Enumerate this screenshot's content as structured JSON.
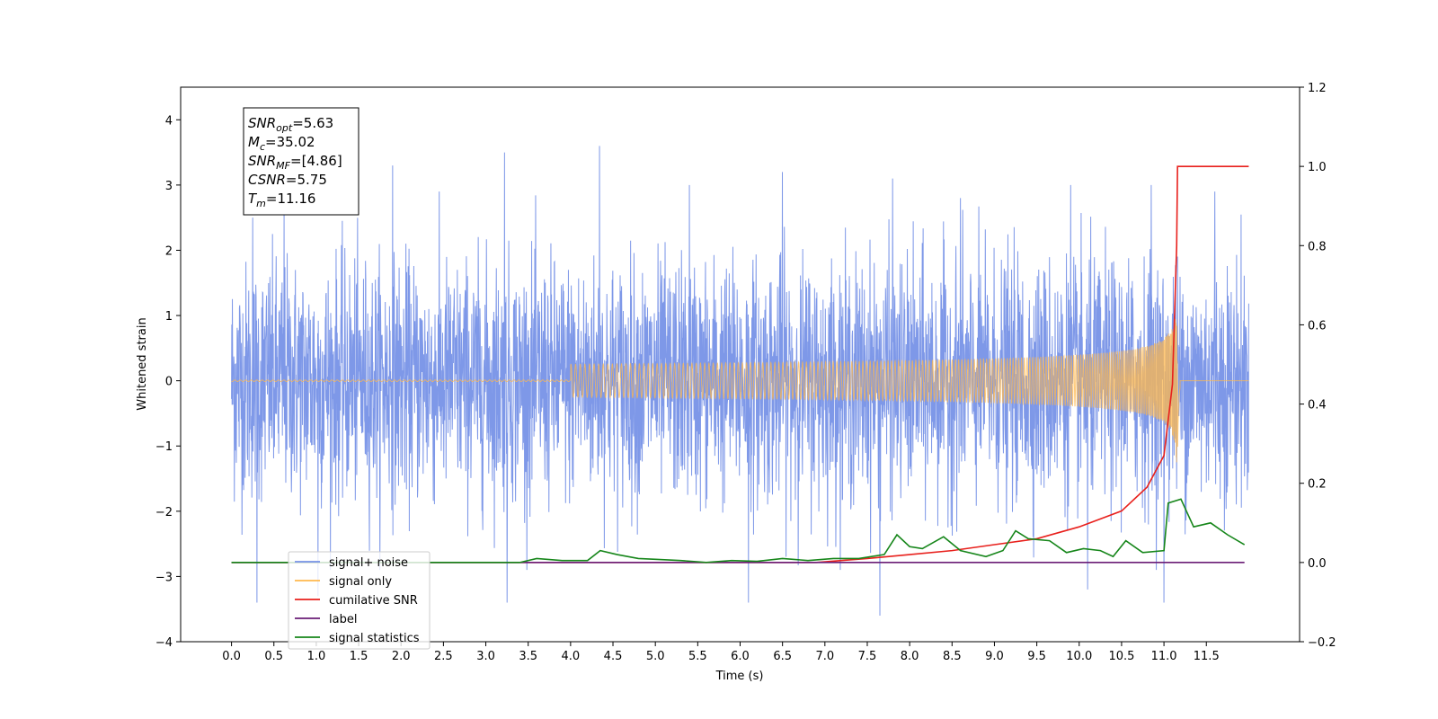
{
  "chart_data": {
    "type": "line",
    "title": "",
    "xlabel": "Time (s)",
    "ylabel": "Whitened strain",
    "y2label": "",
    "xlim": [
      -0.6,
      12.6
    ],
    "ylim": [
      -4,
      4.5
    ],
    "y2lim": [
      -0.2,
      1.2
    ],
    "x_ticks": [
      "0.0",
      "0.5",
      "1.0",
      "1.5",
      "2.0",
      "2.5",
      "3.0",
      "3.5",
      "4.0",
      "4.5",
      "5.0",
      "5.5",
      "6.0",
      "6.5",
      "7.0",
      "7.5",
      "8.0",
      "8.5",
      "9.0",
      "9.5",
      "10.0",
      "10.5",
      "11.0",
      "11.5"
    ],
    "y_ticks": [
      "−4",
      "−3",
      "−2",
      "−1",
      "0",
      "1",
      "2",
      "3",
      "4"
    ],
    "y2_ticks": [
      "−0.2",
      "0.0",
      "0.2",
      "0.4",
      "0.6",
      "0.8",
      "1.0",
      "1.2"
    ],
    "grid": false,
    "legend_position": "lower-left",
    "annotation": {
      "lines": [
        {
          "main": "SNR",
          "sub": "opt",
          "rest": "=5.63"
        },
        {
          "main": "M",
          "sub": "c",
          "rest": "=35.02"
        },
        {
          "main": "SNR",
          "sub": "MF",
          "rest": "=[4.86]"
        },
        {
          "main": "CSNR",
          "sub": "",
          "rest": "=5.75"
        },
        {
          "main": "T",
          "sub": "m",
          "rest": "=11.16"
        }
      ]
    },
    "series": [
      {
        "name": "signal+ noise",
        "color": "#7792e7",
        "axis": "left",
        "description_values": {
          "x_start": 0.0,
          "x_end": 12.0,
          "std": 0.9,
          "max": 3.6,
          "min": -3.6
        },
        "peaks": [
          [
            0.25,
            2.5
          ],
          [
            0.62,
            2.6
          ],
          [
            1.9,
            3.3
          ],
          [
            3.22,
            3.5
          ],
          [
            4.34,
            3.6
          ],
          [
            5.4,
            3.0
          ],
          [
            6.5,
            3.2
          ],
          [
            7.8,
            3.1
          ],
          [
            8.6,
            2.8
          ],
          [
            9.9,
            3.0
          ],
          [
            10.85,
            3.0
          ],
          [
            11.6,
            2.9
          ]
        ],
        "troughs": [
          [
            0.3,
            -3.4
          ],
          [
            1.02,
            -3.3
          ],
          [
            3.25,
            -3.4
          ],
          [
            6.1,
            -3.4
          ],
          [
            7.65,
            -3.6
          ],
          [
            10.1,
            -3.2
          ],
          [
            11.0,
            -3.4
          ]
        ]
      },
      {
        "name": "signal only",
        "color": "#ffb84d",
        "axis": "left",
        "description_values": {
          "x_start": 0.0,
          "x_end": 12.0,
          "merger_time": 11.16,
          "peak_amplitude": 1.25
        }
      },
      {
        "name": "cumilative SNR",
        "color": "#e8201c",
        "axis": "right",
        "points": [
          [
            0.0,
            0.0
          ],
          [
            6.9,
            0.0
          ],
          [
            7.5,
            0.01
          ],
          [
            8.0,
            0.02
          ],
          [
            8.5,
            0.03
          ],
          [
            9.0,
            0.045
          ],
          [
            9.5,
            0.06
          ],
          [
            10.0,
            0.09
          ],
          [
            10.5,
            0.13
          ],
          [
            10.8,
            0.19
          ],
          [
            11.0,
            0.27
          ],
          [
            11.1,
            0.45
          ],
          [
            11.15,
            0.8
          ],
          [
            11.16,
            1.0
          ],
          [
            12.0,
            1.0
          ]
        ]
      },
      {
        "name": "label",
        "color": "#6a1d76",
        "axis": "right",
        "points": [
          [
            0.0,
            0.0
          ],
          [
            11.95,
            0.0
          ]
        ]
      },
      {
        "name": "signal statistics",
        "color": "#16861a",
        "axis": "right",
        "points": [
          [
            0.0,
            0.0
          ],
          [
            3.4,
            0.0
          ],
          [
            3.6,
            0.01
          ],
          [
            3.9,
            0.005
          ],
          [
            4.2,
            0.005
          ],
          [
            4.35,
            0.03
          ],
          [
            4.55,
            0.02
          ],
          [
            4.8,
            0.01
          ],
          [
            5.0,
            0.008
          ],
          [
            5.3,
            0.005
          ],
          [
            5.6,
            0.0
          ],
          [
            5.9,
            0.005
          ],
          [
            6.2,
            0.003
          ],
          [
            6.5,
            0.01
          ],
          [
            6.8,
            0.005
          ],
          [
            7.1,
            0.01
          ],
          [
            7.4,
            0.01
          ],
          [
            7.7,
            0.02
          ],
          [
            7.85,
            0.07
          ],
          [
            8.0,
            0.04
          ],
          [
            8.15,
            0.035
          ],
          [
            8.4,
            0.065
          ],
          [
            8.6,
            0.03
          ],
          [
            8.9,
            0.015
          ],
          [
            9.1,
            0.03
          ],
          [
            9.25,
            0.08
          ],
          [
            9.4,
            0.06
          ],
          [
            9.65,
            0.055
          ],
          [
            9.85,
            0.025
          ],
          [
            10.05,
            0.035
          ],
          [
            10.25,
            0.03
          ],
          [
            10.4,
            0.015
          ],
          [
            10.55,
            0.055
          ],
          [
            10.75,
            0.025
          ],
          [
            11.0,
            0.03
          ],
          [
            11.05,
            0.15
          ],
          [
            11.2,
            0.16
          ],
          [
            11.35,
            0.09
          ],
          [
            11.55,
            0.1
          ],
          [
            11.75,
            0.07
          ],
          [
            11.95,
            0.045
          ]
        ]
      }
    ]
  }
}
